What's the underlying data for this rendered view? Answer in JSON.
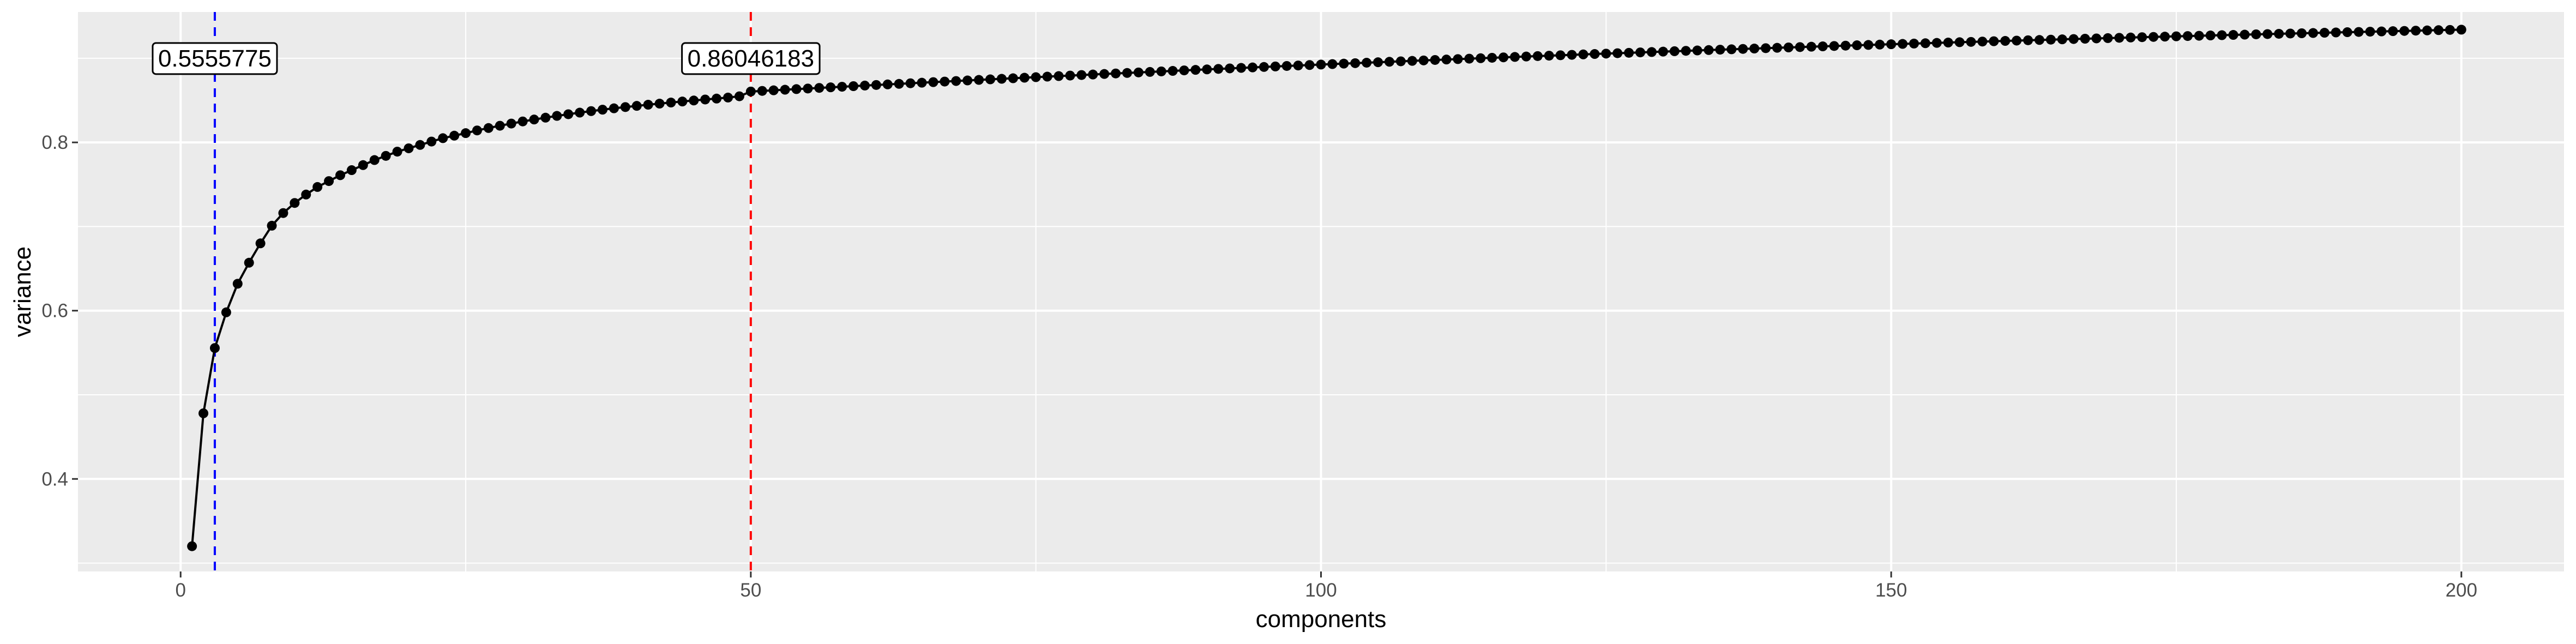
{
  "chart_data": {
    "type": "line",
    "title": "",
    "xlabel": "components",
    "ylabel": "variance",
    "xlim": [
      -9,
      209
    ],
    "ylim": [
      0.29,
      0.955
    ],
    "x_ticks": [
      0,
      50,
      100,
      150,
      200
    ],
    "x_tick_labels": [
      "0",
      "50",
      "100",
      "150",
      "200"
    ],
    "y_ticks": [
      0.4,
      0.6,
      0.8
    ],
    "y_tick_labels": [
      "0.4",
      "0.6",
      "0.8"
    ],
    "grid": true,
    "legend": "none",
    "series": [
      {
        "color": "#000000",
        "markers": true,
        "x": "1..200",
        "values": [
          0.32,
          0.478,
          0.5555775,
          0.598,
          0.632,
          0.657,
          0.68,
          0.701,
          0.716,
          0.728,
          0.738,
          0.747,
          0.754,
          0.761,
          0.767,
          0.773,
          0.779,
          0.784,
          0.789,
          0.793,
          0.797,
          0.801,
          0.805,
          0.808,
          0.811,
          0.8142,
          0.8171,
          0.8198,
          0.8224,
          0.8249,
          0.8272,
          0.8294,
          0.8315,
          0.8335,
          0.8354,
          0.8372,
          0.8389,
          0.8405,
          0.842,
          0.8434,
          0.8448,
          0.8461,
          0.8474,
          0.8486,
          0.8498,
          0.851,
          0.8521,
          0.8533,
          0.8548,
          0.86046183
        ]
      }
    ],
    "tail_model": {
      "from_x": 51,
      "to_x": 200,
      "end_value": 0.934,
      "shape": "concave"
    },
    "reference_lines": [
      {
        "x": 3,
        "color": "#0000ff",
        "style": "dashed"
      },
      {
        "x": 50,
        "color": "#ff0000",
        "style": "dashed"
      }
    ],
    "annotations": [
      {
        "x": 3,
        "y": 0.9,
        "text": "0.5555775"
      },
      {
        "x": 50,
        "y": 0.9,
        "text": "0.86046183"
      }
    ],
    "panel_color": "#ebebeb",
    "grid_color": "#ffffff"
  }
}
